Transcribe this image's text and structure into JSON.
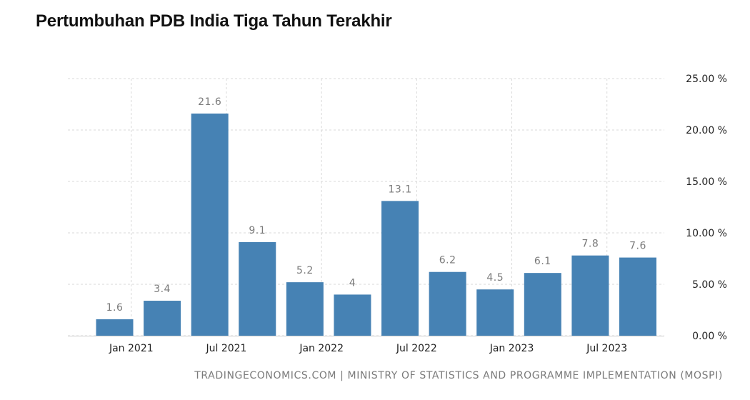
{
  "header": {
    "title": "Pertumbuhan PDB India Tiga Tahun Terakhir"
  },
  "footer": {
    "source": "TRADINGECONOMICS.COM | MINISTRY OF STATISTICS AND PROGRAMME IMPLEMENTATION (MOSPI)"
  },
  "chart_data": {
    "type": "bar",
    "title": "Pertumbuhan PDB India Tiga Tahun Terakhir",
    "xlabel": "",
    "ylabel": "",
    "ylim": [
      0,
      25
    ],
    "y_ticks": [
      "0.00 %",
      "5.00 %",
      "10.00 %",
      "15.00 %",
      "20.00 %",
      "25.00 %"
    ],
    "y_tick_values": [
      0,
      5,
      10,
      15,
      20,
      25
    ],
    "y_axis_position": "right",
    "grid": true,
    "x_tick_labels": [
      "Jan 2021",
      "Jul 2021",
      "Jan 2022",
      "Jul 2022",
      "Jan 2023",
      "Jul 2023"
    ],
    "series": [
      {
        "values": [
          1.6,
          3.4,
          21.6,
          9.1,
          5.2,
          4,
          13.1,
          6.2,
          4.5,
          6.1,
          7.8,
          7.6
        ],
        "labels": [
          "1.6",
          "3.4",
          "21.6",
          "9.1",
          "5.2",
          "4",
          "13.1",
          "6.2",
          "4.5",
          "6.1",
          "7.8",
          "7.6"
        ]
      }
    ],
    "colors": {
      "bar": "#4682b4",
      "grid": "#d9d9d9",
      "label": "#7a7a7a"
    }
  }
}
